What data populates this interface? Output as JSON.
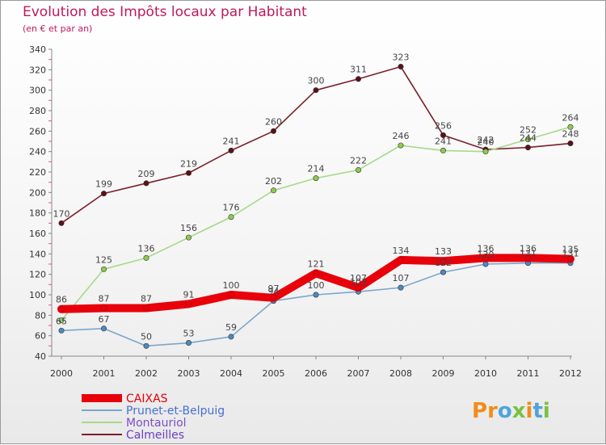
{
  "header": {
    "title": "Evolution des Impôts locaux par Habitant",
    "subtitle": "(en € et par an)"
  },
  "brand": {
    "logo_text": "Proxiti",
    "letter_colors": [
      "#f28c1c",
      "#f28c1c",
      "#4fa3dc",
      "#7ac143",
      "#f28c1c",
      "#4fa3dc",
      "#7ac143"
    ]
  },
  "chart_data": {
    "type": "line",
    "title": "Evolution des Impôts locaux par Habitant",
    "subtitle": "(en € et par an)",
    "xlabel": "",
    "ylabel": "",
    "x": [
      "2000",
      "2001",
      "2002",
      "2003",
      "2004",
      "2005",
      "2006",
      "2007",
      "2008",
      "2009",
      "2010",
      "2011",
      "2012"
    ],
    "ylim": [
      40,
      340
    ],
    "yticks": [
      40,
      60,
      80,
      100,
      120,
      140,
      160,
      180,
      200,
      220,
      240,
      260,
      280,
      300,
      320,
      340
    ],
    "grid": false,
    "legend_position": "bottom-left",
    "series": [
      {
        "name": "Calmeilles",
        "color": "#7a1f2a",
        "marker": "#5c1017",
        "values": [
          170,
          199,
          209,
          219,
          241,
          260,
          300,
          311,
          323,
          256,
          242,
          244,
          248
        ],
        "labels": [
          "170",
          "199",
          "209",
          "219",
          "241",
          "260",
          "300",
          "311",
          "323",
          "256",
          "242",
          "",
          ""
        ]
      },
      {
        "name": "Montauriol",
        "color": "#a8d98a",
        "marker": "#8ccc4f",
        "values": [
          75,
          125,
          136,
          156,
          176,
          202,
          214,
          222,
          246,
          241,
          240,
          252,
          264
        ],
        "labels": [
          "",
          "125",
          "136",
          "156",
          "176",
          "202",
          "214",
          "222",
          "246",
          "241",
          "240",
          "252",
          "264"
        ]
      },
      {
        "name": "Prunet-et-Belpuig",
        "color": "#7ba6cc",
        "marker": "#4a8ac4",
        "values": [
          65,
          67,
          50,
          53,
          59,
          94,
          100,
          103,
          107,
          122,
          130,
          131,
          131
        ],
        "labels": [
          "65",
          "67",
          "50",
          "53",
          "59",
          "94",
          "100",
          "103",
          "107",
          "122",
          "130",
          "131",
          "131"
        ]
      },
      {
        "name": "CAIXAS",
        "color": "#e8000b",
        "marker": "#e8000b",
        "values": [
          86,
          87,
          87,
          91,
          100,
          97,
          121,
          107,
          134,
          133,
          136,
          136,
          135
        ],
        "labels": [
          "86",
          "87",
          "87",
          "91",
          "100",
          "97",
          "121",
          "107",
          "134",
          "133",
          "136",
          "136",
          "135"
        ]
      }
    ],
    "extra_labels": [
      {
        "series": "Calmeilles",
        "index": 11,
        "text": "244"
      },
      {
        "series": "Calmeilles",
        "index": 12,
        "text": "248"
      }
    ]
  },
  "legend": {
    "items": [
      {
        "label": "CAIXAS",
        "color": "#e8000b",
        "text_color": "#e8000b",
        "thick": true
      },
      {
        "label": "Prunet-et-Belpuig",
        "color": "#7ba6cc",
        "text_color": "#4a6fd4",
        "thick": false
      },
      {
        "label": "Montauriol",
        "color": "#a8d98a",
        "text_color": "#7a4fc4",
        "thick": false
      },
      {
        "label": "Calmeilles",
        "color": "#7a1f2a",
        "text_color": "#6a3fc4",
        "thick": false
      }
    ]
  }
}
